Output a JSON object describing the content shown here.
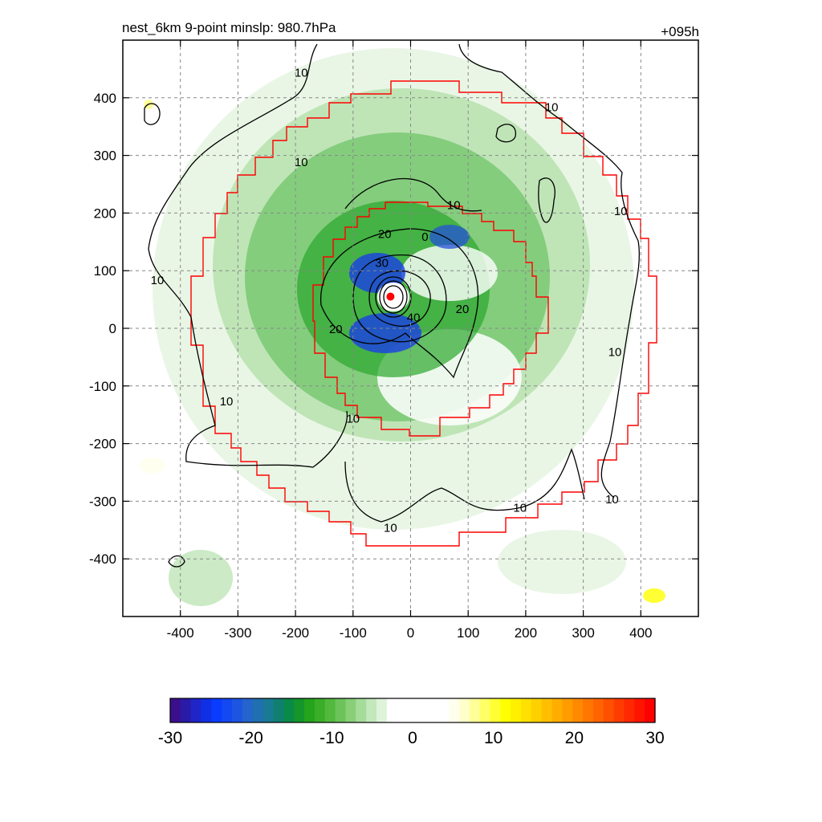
{
  "header": {
    "title": "nest_6km  9-point minslp: 980.7hPa",
    "forecast_hour": "+095h"
  },
  "chart_data": {
    "type": "heatmap",
    "title": "nest_6km  9-point minslp: 980.7hPa",
    "xlabel": "",
    "ylabel": "",
    "xlim": [
      -500,
      500
    ],
    "ylim": [
      -500,
      500
    ],
    "x_ticks": [
      -400,
      -300,
      -200,
      -100,
      0,
      100,
      200,
      300,
      400
    ],
    "y_ticks": [
      -400,
      -300,
      -200,
      -100,
      0,
      100,
      200,
      300,
      400
    ],
    "grid": true,
    "storm_center": [
      -35,
      55
    ],
    "contour_levels": [
      10,
      20,
      30,
      40
    ],
    "contour_labels": [
      {
        "text": "10",
        "x": -190,
        "y": 290
      },
      {
        "text": "10",
        "x": -440,
        "y": 85
      },
      {
        "text": "10",
        "x": -320,
        "y": -125
      },
      {
        "text": "10",
        "x": -100,
        "y": -155
      },
      {
        "text": "10",
        "x": -35,
        "y": -345
      },
      {
        "text": "10",
        "x": 190,
        "y": -310
      },
      {
        "text": "10",
        "x": 350,
        "y": -295
      },
      {
        "text": "10",
        "x": 355,
        "y": -40
      },
      {
        "text": "10",
        "x": 365,
        "y": 205
      },
      {
        "text": "10",
        "x": 245,
        "y": 385
      },
      {
        "text": "10",
        "x": -190,
        "y": 445
      },
      {
        "text": "10",
        "x": 75,
        "y": 215
      },
      {
        "text": "20",
        "x": -45,
        "y": 165
      },
      {
        "text": "20",
        "x": -130,
        "y": 0
      },
      {
        "text": "20",
        "x": 90,
        "y": 35
      },
      {
        "text": "30",
        "x": -50,
        "y": 115
      },
      {
        "text": "40",
        "x": 5,
        "y": 20
      },
      {
        "text": "0",
        "x": 25,
        "y": 160
      }
    ],
    "colorbar": {
      "min": -30,
      "max": 30,
      "tick_labels": [
        "-30",
        "-20",
        "-10",
        "0",
        "10",
        "20",
        "30"
      ],
      "colors": [
        "#3b0f8c",
        "#2a1aa8",
        "#1f25c8",
        "#1030e6",
        "#0a3cff",
        "#1448f0",
        "#1d55e0",
        "#2464cc",
        "#206fb0",
        "#1a7a94",
        "#117f70",
        "#0a8a48",
        "#14962a",
        "#24a41c",
        "#3aae28",
        "#52b93e",
        "#6cc35a",
        "#88cf78",
        "#a5dc9a",
        "#c2e8bc",
        "#deF3da",
        "#ffffff",
        "#ffffff",
        "#ffffff",
        "#ffffff",
        "#ffffff",
        "#ffffff",
        "#fffff0",
        "#ffffcc",
        "#ffff99",
        "#ffff66",
        "#ffff33",
        "#ffff00",
        "#fff000",
        "#ffe000",
        "#ffd000",
        "#ffbf00",
        "#ffae00",
        "#ff9c00",
        "#ff8a00",
        "#ff7700",
        "#ff6400",
        "#ff5000",
        "#ff3c00",
        "#ff2800",
        "#ff1400",
        "#ff0000"
      ]
    }
  }
}
